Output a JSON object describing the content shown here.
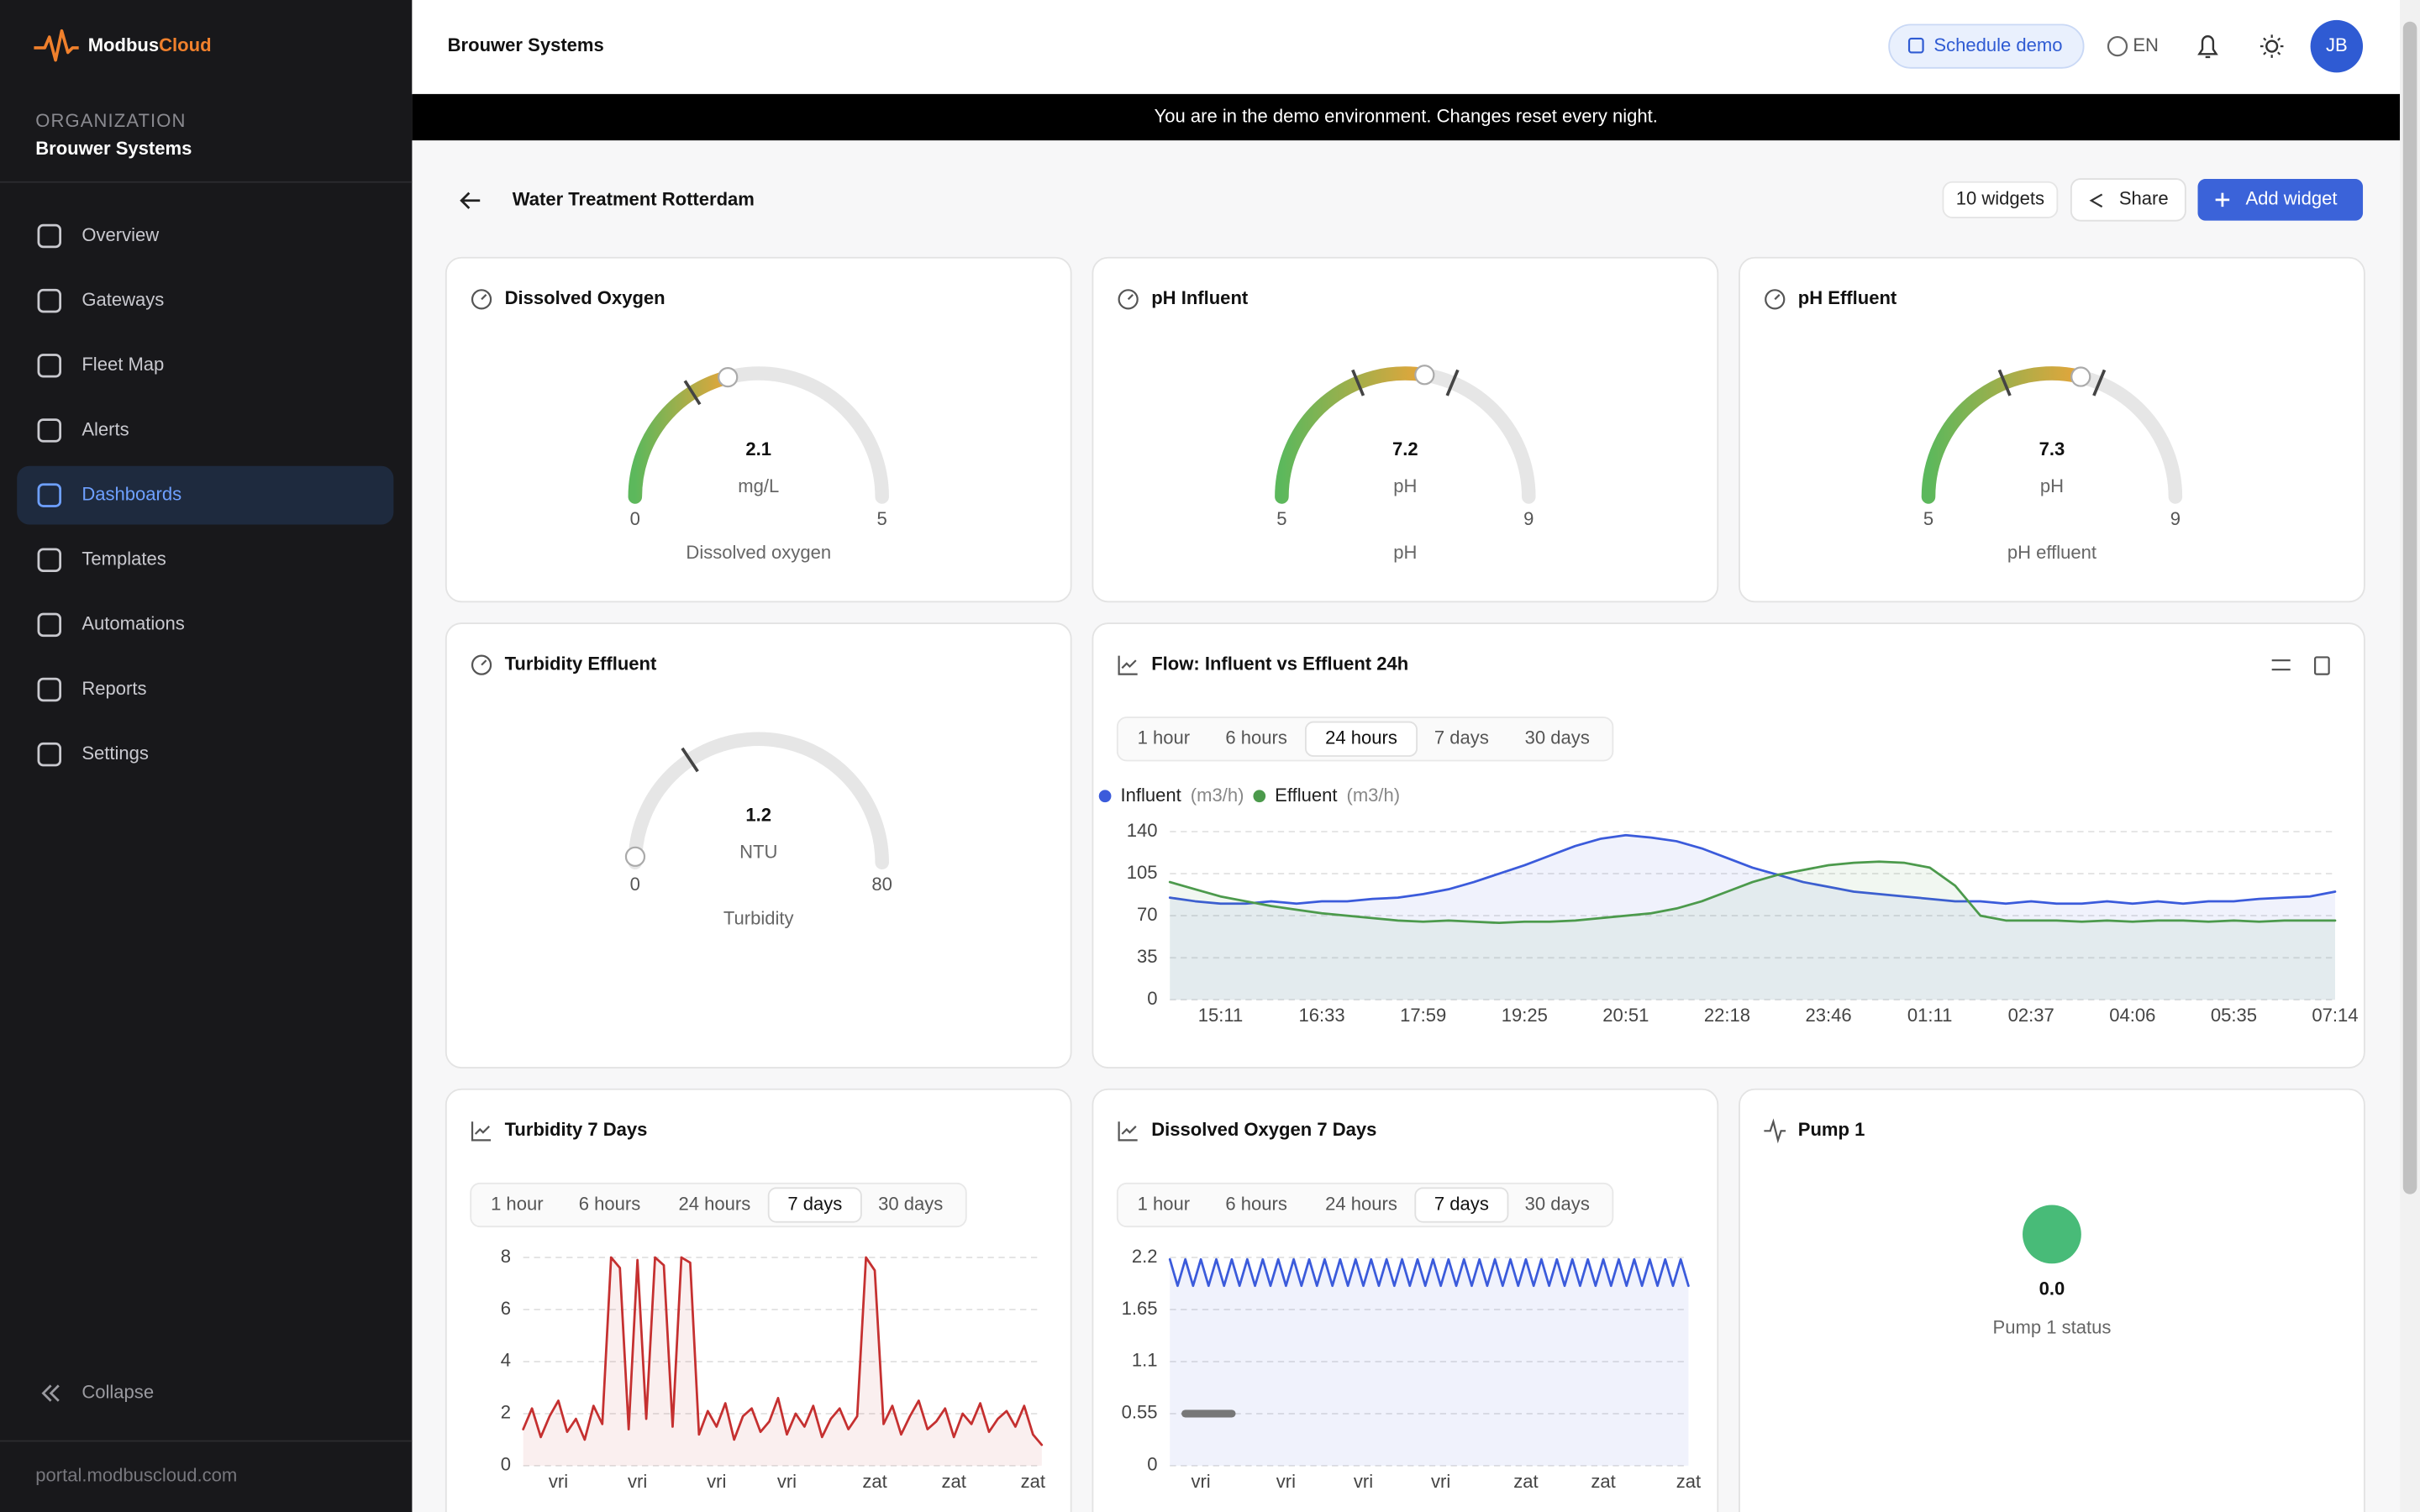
{
  "sidebar": {
    "brand": {
      "name": "Modbus",
      "accent": "Cloud"
    },
    "org_label": "ORGANIZATION",
    "org_name": "Brouwer Systems",
    "nav": [
      "Overview",
      "Gateways",
      "Fleet Map",
      "Alerts",
      "Dashboards",
      "Templates",
      "Automations",
      "Reports",
      "Settings"
    ],
    "active_nav": 4,
    "collapse": "Collapse",
    "footer": "portal.modbuscloud.com"
  },
  "topbar": {
    "title": "Brouwer Systems",
    "schedule_demo": "Schedule demo",
    "language": "EN",
    "avatar": "JB"
  },
  "banner": "You are in the demo environment. Changes reset every night.",
  "dashboard": {
    "title": "Water Treatment Rotterdam",
    "widget_count": "10 widgets",
    "share": "Share",
    "add_widget": "Add widget"
  },
  "widgets": [
    {
      "type": "gauge",
      "title": "Dissolved Oxygen",
      "value": 2.1,
      "unit": "mg/L",
      "min": 0,
      "max": 5,
      "label": "Dissolved oxygen",
      "thresholds": [
        1.6
      ]
    },
    {
      "type": "gauge",
      "title": "pH Influent",
      "value": 7.2,
      "unit": "pH",
      "min": 5,
      "max": 9,
      "label": "pH",
      "thresholds": [
        6.5,
        7.5
      ]
    },
    {
      "type": "gauge",
      "title": "pH Effluent",
      "value": 7.3,
      "unit": "pH",
      "min": 5,
      "max": 9,
      "label": "pH effluent",
      "thresholds": [
        6.5,
        7.5
      ]
    },
    {
      "type": "gauge",
      "title": "Turbidity Effluent",
      "value": 1.2,
      "unit": "NTU",
      "min": 0,
      "max": 80,
      "label": "Turbidity",
      "thresholds": [
        25
      ]
    },
    {
      "type": "line",
      "title": "Flow: Influent vs Effluent 24h",
      "ranges": [
        "1 hour",
        "6 hours",
        "24 hours",
        "7 days",
        "30 days"
      ],
      "active_range": 2,
      "categories": [
        null,
        null,
        "15:11",
        null,
        null,
        null,
        "16:33",
        null,
        null,
        null,
        "17:59",
        null,
        null,
        null,
        "19:25",
        null,
        null,
        null,
        "20:51",
        null,
        null,
        null,
        "22:18",
        null,
        null,
        null,
        "23:46",
        null,
        null,
        null,
        "01:11",
        null,
        null,
        null,
        "02:37",
        null,
        null,
        null,
        "04:06",
        null,
        null,
        null,
        "05:35",
        null,
        null,
        null,
        "07:14"
      ],
      "series": [
        {
          "name": "Influent",
          "unit": "(m3/h)",
          "color": "#3b5bdb",
          "area": true,
          "values": [
            85,
            82,
            80,
            80,
            82,
            80,
            82,
            82,
            84,
            85,
            88,
            92,
            98,
            105,
            112,
            120,
            128,
            134,
            137,
            135,
            132,
            126,
            118,
            110,
            104,
            98,
            94,
            90,
            88,
            86,
            84,
            82,
            82,
            80,
            82,
            80,
            80,
            82,
            80,
            82,
            80,
            82,
            82,
            84,
            85,
            86,
            90
          ]
        },
        {
          "name": "Effluent",
          "unit": "(m3/h)",
          "color": "#4c9a4c",
          "area": true,
          "values": [
            98,
            92,
            86,
            82,
            78,
            75,
            72,
            70,
            68,
            66,
            65,
            66,
            65,
            64,
            65,
            65,
            66,
            68,
            70,
            72,
            76,
            82,
            90,
            98,
            104,
            108,
            112,
            114,
            115,
            114,
            110,
            95,
            70,
            66,
            66,
            66,
            65,
            66,
            65,
            66,
            66,
            65,
            66,
            65,
            66,
            66,
            66
          ]
        }
      ],
      "ylim": [
        0,
        140
      ],
      "yticks": [
        0,
        35,
        70,
        105,
        140
      ],
      "grid": true
    },
    {
      "type": "line",
      "title": "Turbidity 7 Days",
      "ranges": [
        "1 hour",
        "6 hours",
        "24 hours",
        "7 days",
        "30 days"
      ],
      "active_range": 3,
      "categories": [
        null,
        null,
        null,
        null,
        "vri",
        null,
        null,
        null,
        null,
        null,
        null,
        null,
        null,
        "vri",
        null,
        null,
        null,
        null,
        null,
        null,
        null,
        null,
        "vri",
        null,
        null,
        null,
        null,
        null,
        null,
        null,
        "vri",
        null,
        null,
        null,
        null,
        null,
        null,
        null,
        null,
        null,
        "zat",
        null,
        null,
        null,
        null,
        null,
        null,
        null,
        null,
        "zat",
        null,
        null,
        null,
        null,
        null,
        null,
        null,
        null,
        "zat",
        null
      ],
      "series": [
        {
          "color": "#c53030",
          "area": true,
          "values": [
            1.4,
            2.2,
            1.1,
            1.9,
            2.5,
            1.3,
            1.8,
            1.0,
            2.3,
            1.6,
            8.0,
            7.6,
            1.4,
            7.9,
            1.8,
            8.0,
            7.7,
            1.5,
            8.0,
            7.8,
            1.2,
            2.1,
            1.5,
            2.4,
            1.0,
            1.9,
            2.2,
            1.3,
            1.7,
            2.6,
            1.2,
            2.0,
            1.5,
            2.3,
            1.1,
            1.8,
            2.2,
            1.4,
            1.9,
            8.0,
            7.5,
            1.6,
            2.3,
            1.2,
            1.9,
            2.5,
            1.4,
            1.7,
            2.2,
            1.1,
            2.0,
            1.6,
            2.4,
            1.3,
            1.8,
            2.1,
            1.5,
            2.3,
            1.2,
            0.8
          ]
        }
      ],
      "ylim": [
        0,
        8
      ],
      "yticks": [
        0,
        2,
        4,
        6,
        8
      ],
      "grid": true
    },
    {
      "type": "line",
      "title": "Dissolved Oxygen 7 Days",
      "ranges": [
        "1 hour",
        "6 hours",
        "24 hours",
        "7 days",
        "30 days"
      ],
      "active_range": 3,
      "categories": [
        null,
        null,
        null,
        null,
        "vri",
        null,
        null,
        null,
        null,
        null,
        null,
        null,
        null,
        null,
        null,
        "vri",
        null,
        null,
        null,
        null,
        null,
        null,
        null,
        null,
        null,
        "vri",
        null,
        null,
        null,
        null,
        null,
        null,
        null,
        null,
        null,
        "vri",
        null,
        null,
        null,
        null,
        null,
        null,
        null,
        null,
        null,
        null,
        "zat",
        null,
        null,
        null,
        null,
        null,
        null,
        null,
        null,
        null,
        "zat",
        null,
        null,
        null,
        null,
        null,
        null,
        null,
        null,
        null,
        null,
        "zat"
      ],
      "series": [
        {
          "color": "#3b5bdb",
          "area": true,
          "values": [
            2.18,
            1.9,
            2.18,
            1.9,
            2.18,
            1.9,
            2.18,
            1.9,
            2.18,
            1.9,
            2.18,
            1.9,
            2.18,
            1.9,
            2.18,
            1.9,
            2.18,
            1.9,
            2.18,
            1.9,
            2.18,
            1.9,
            2.18,
            1.9,
            2.18,
            1.9,
            2.18,
            1.9,
            2.18,
            1.9,
            2.18,
            1.9,
            2.18,
            1.9,
            2.18,
            1.9,
            2.18,
            1.9,
            2.18,
            1.9,
            2.18,
            1.9,
            2.18,
            1.9,
            2.18,
            1.9,
            2.18,
            1.9,
            2.18,
            1.9,
            2.18,
            1.9,
            2.18,
            1.9,
            2.18,
            1.9,
            2.18,
            1.9,
            2.18,
            1.9,
            2.18,
            1.9,
            2.18,
            1.9,
            2.18,
            1.9,
            2.18,
            1.9
          ]
        },
        {
          "color": "#777777",
          "area": false,
          "thick": true,
          "values": [
            null,
            null,
            0.55,
            0.55,
            0.55,
            0.55,
            0.55,
            0.55,
            0.55,
            null,
            null,
            null,
            null,
            null,
            null,
            null,
            null,
            null,
            null,
            null,
            null,
            null,
            null,
            null,
            null,
            null,
            null,
            null,
            null,
            null,
            null,
            null,
            null,
            null,
            null,
            null,
            null,
            null,
            null,
            null,
            null,
            null,
            null,
            null,
            null,
            null,
            null,
            null,
            null,
            null,
            null,
            null,
            null,
            null,
            null,
            null,
            null,
            null,
            null,
            null,
            null,
            null,
            null,
            null,
            null,
            null,
            null,
            null
          ]
        }
      ],
      "ylim": [
        0,
        2.2
      ],
      "yticks": [
        0,
        0.55,
        1.1,
        1.65,
        2.2
      ],
      "grid": true
    },
    {
      "type": "status",
      "title": "Pump 1",
      "value": 0,
      "value_label": "0.0",
      "label": "Pump 1 status",
      "color": "#48bb78"
    }
  ]
}
